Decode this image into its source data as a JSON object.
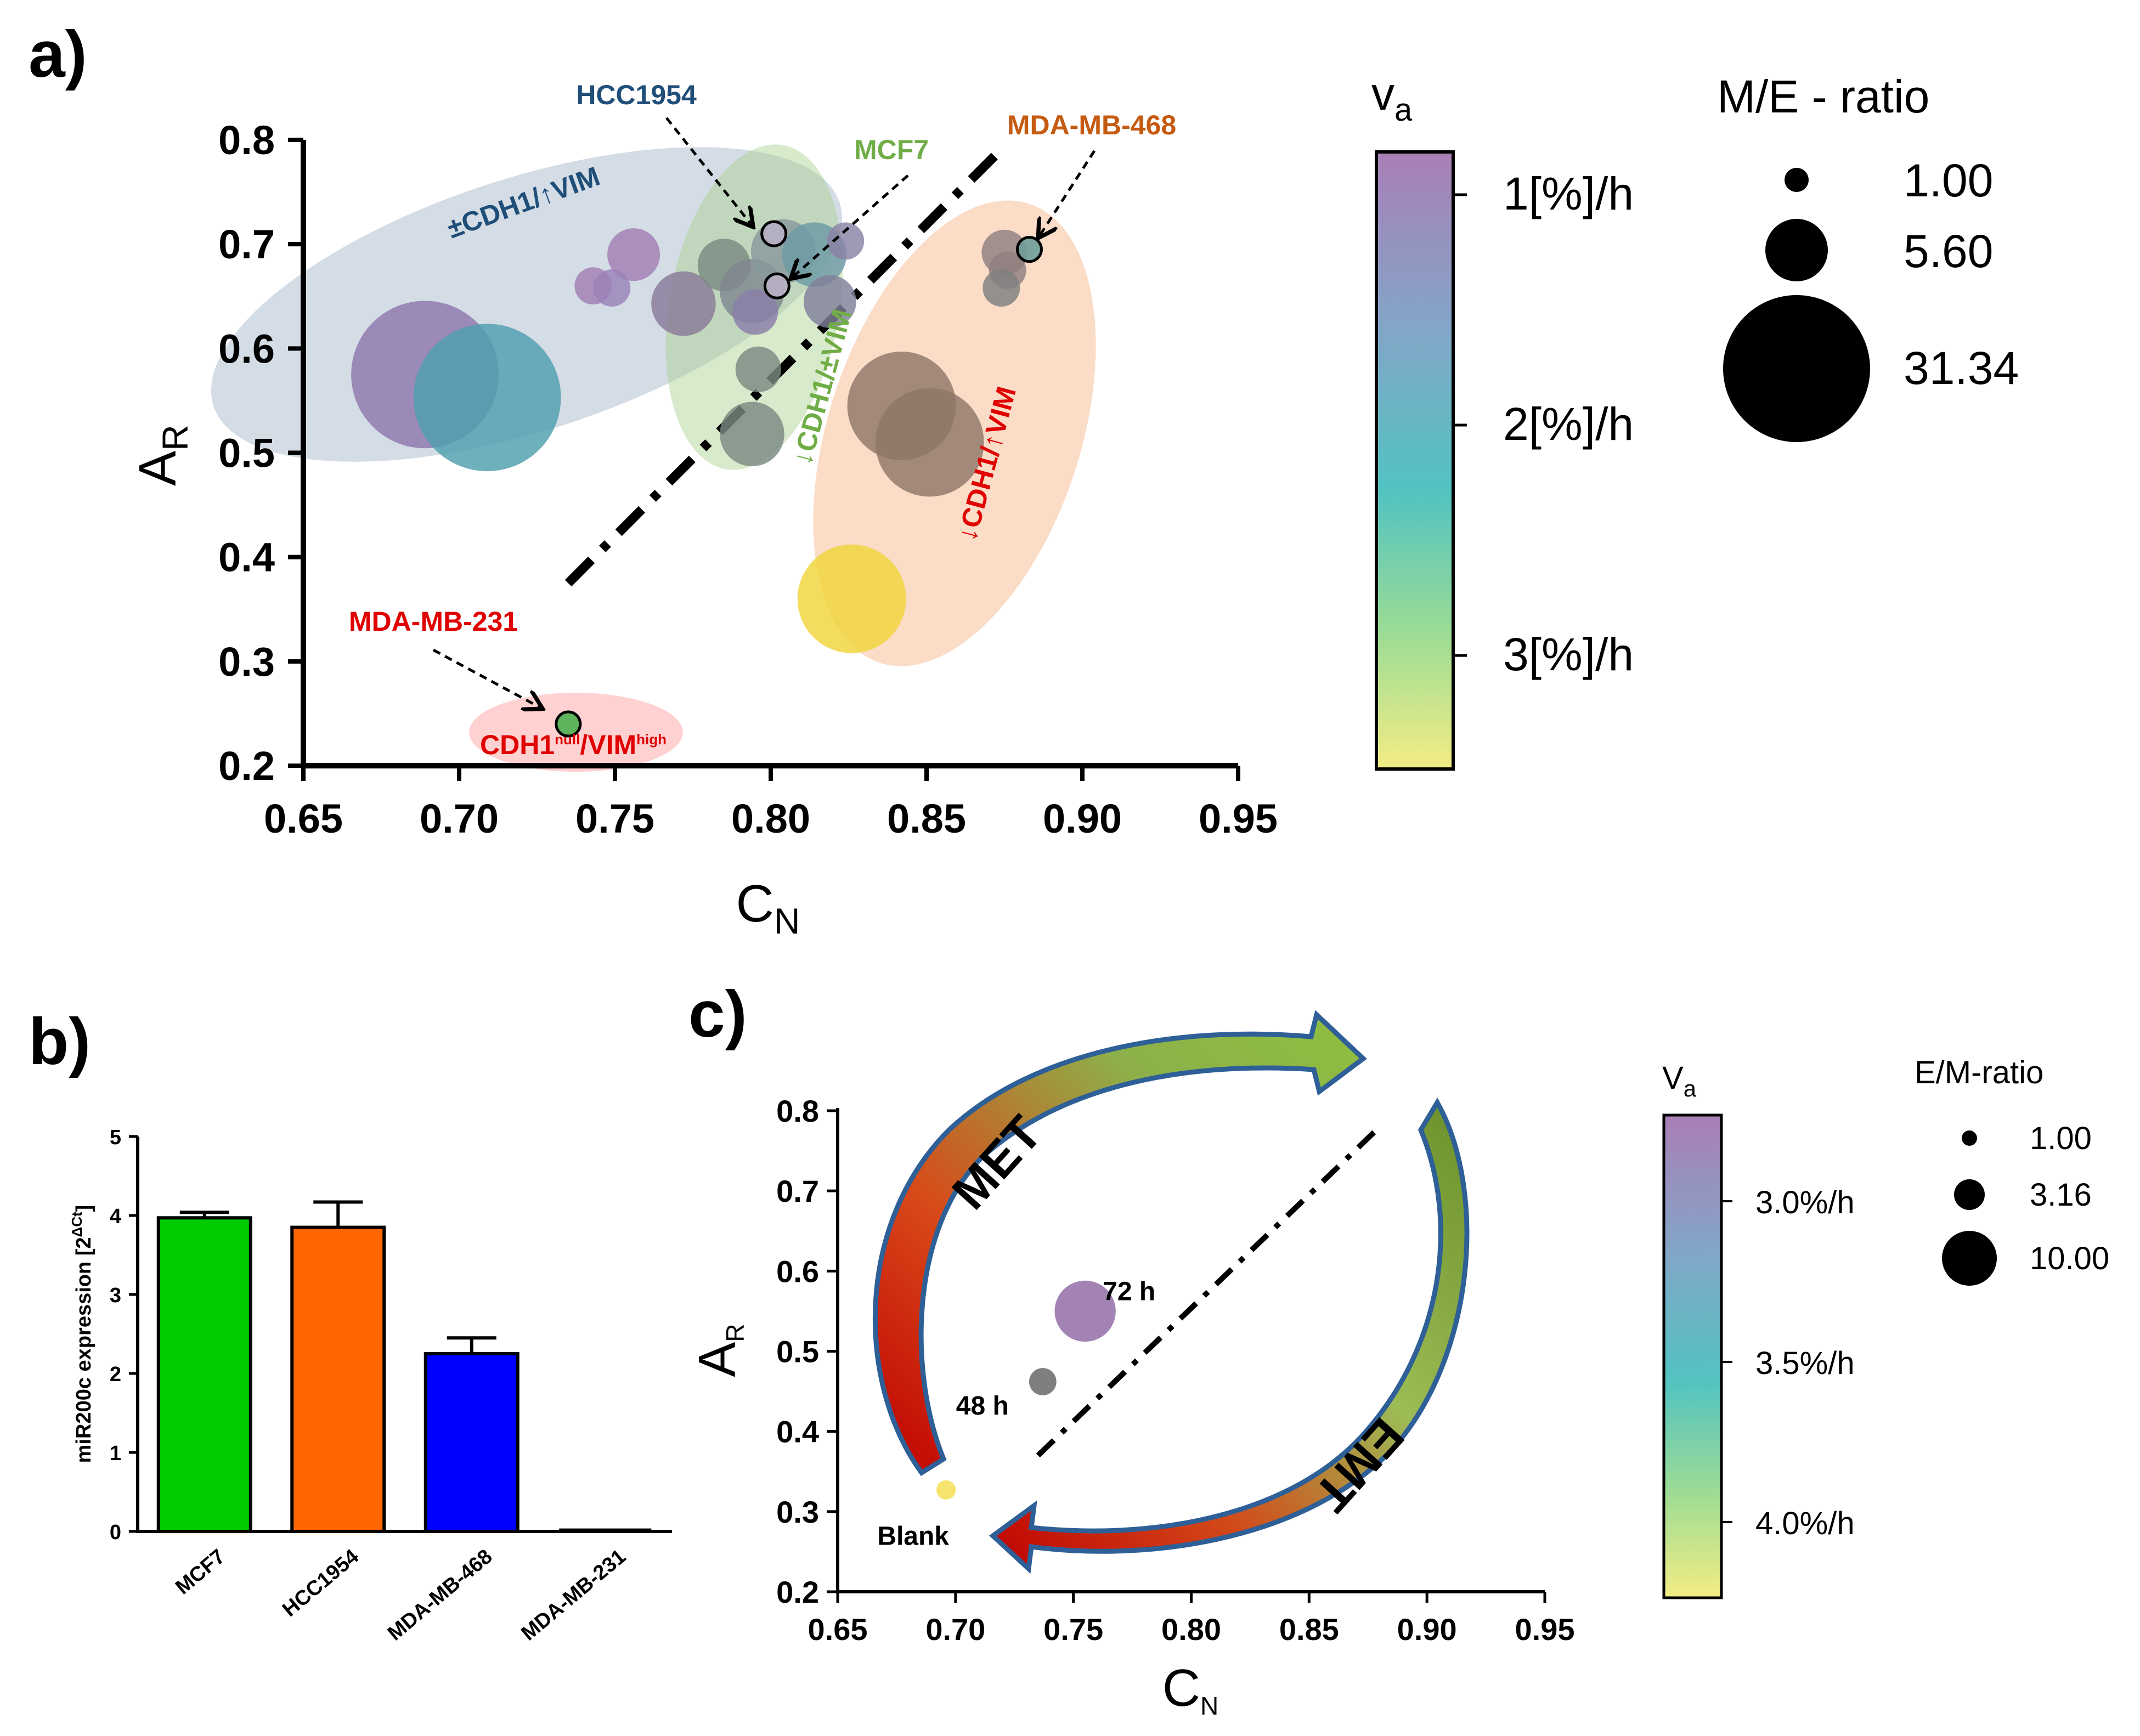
{
  "panel_labels": {
    "a": "a)",
    "b": "b)",
    "c": "c)"
  },
  "chart_data": [
    {
      "panel": "a",
      "type": "scatter",
      "xlabel": "C",
      "xlabel_sub": "N",
      "ylabel": "A",
      "ylabel_sub": "R",
      "xlim": [
        0.65,
        0.95
      ],
      "ylim": [
        0.2,
        0.8
      ],
      "xticks": [
        "0.65",
        "0.70",
        "0.75",
        "0.80",
        "0.85",
        "0.90",
        "0.95"
      ],
      "yticks": [
        "0.2",
        "0.3",
        "0.4",
        "0.5",
        "0.6",
        "0.7",
        "0.8"
      ],
      "colorbar": {
        "title": "v",
        "title_sub": "a",
        "ticks": [
          "1[%]/h",
          "2[%]/h",
          "3[%]/h"
        ],
        "colors": [
          "#a97fb6",
          "#83a5c8",
          "#52c3c1",
          "#9cdc95",
          "#f3ec84"
        ]
      },
      "size_legend": {
        "title": "M/E - ratio",
        "entries": [
          "1.00",
          "5.60",
          "31.34"
        ]
      },
      "regions": [
        {
          "label": "±CDH1/↑VIM",
          "color": "#1f4e79"
        },
        {
          "label": "↓CDH1/±VIM",
          "color": "#70ad47"
        },
        {
          "label": "↓CDH1/↑VIM",
          "color": "#e00000"
        },
        {
          "label": "CDH1",
          "sup1": "null",
          "mid": "/VIM",
          "sup2": "high",
          "color": "#e00000"
        }
      ],
      "cell_lines": [
        {
          "name": "HCC1954",
          "color": "#1f4e79",
          "x": 0.801,
          "y": 0.71
        },
        {
          "name": "MCF7",
          "color": "#70ad47",
          "x": 0.802,
          "y": 0.66
        },
        {
          "name": "MDA-MB-468",
          "color": "#c55a11",
          "x": 0.883,
          "y": 0.695
        },
        {
          "name": "MDA-MB-231",
          "color": "#e00000",
          "x": 0.735,
          "y": 0.24
        }
      ],
      "points": [
        {
          "x": 0.689,
          "y": 0.575,
          "ratio": 31.34,
          "color": "#8f78ad"
        },
        {
          "x": 0.709,
          "y": 0.553,
          "ratio": 31.34,
          "color": "#4f9fae"
        },
        {
          "x": 0.756,
          "y": 0.69,
          "ratio": 4.0,
          "color": "#a27fb5"
        },
        {
          "x": 0.743,
          "y": 0.66,
          "ratio": 2.0,
          "color": "#a27fb5"
        },
        {
          "x": 0.749,
          "y": 0.658,
          "ratio": 2.0,
          "color": "#9a82b8"
        },
        {
          "x": 0.772,
          "y": 0.643,
          "ratio": 6.0,
          "color": "#8a7a99"
        },
        {
          "x": 0.785,
          "y": 0.68,
          "ratio": 4.0,
          "color": "#7a8a82"
        },
        {
          "x": 0.794,
          "y": 0.655,
          "ratio": 6.0,
          "color": "#7f8790"
        },
        {
          "x": 0.804,
          "y": 0.693,
          "ratio": 6.0,
          "color": "#889a9d"
        },
        {
          "x": 0.814,
          "y": 0.69,
          "ratio": 6.0,
          "color": "#6c9aa6"
        },
        {
          "x": 0.824,
          "y": 0.703,
          "ratio": 2.0,
          "color": "#8b83a6"
        },
        {
          "x": 0.795,
          "y": 0.635,
          "ratio": 3.0,
          "color": "#8a7fa8"
        },
        {
          "x": 0.819,
          "y": 0.645,
          "ratio": 4.0,
          "color": "#80809a"
        },
        {
          "x": 0.796,
          "y": 0.58,
          "ratio": 3.0,
          "color": "#7a8a82"
        },
        {
          "x": 0.794,
          "y": 0.518,
          "ratio": 6.0,
          "color": "#7a8a82"
        },
        {
          "x": 0.842,
          "y": 0.545,
          "ratio": 17.0,
          "color": "#8f7668"
        },
        {
          "x": 0.851,
          "y": 0.51,
          "ratio": 17.0,
          "color": "#8f7668"
        },
        {
          "x": 0.875,
          "y": 0.692,
          "ratio": 3.0,
          "color": "#8f7f80"
        },
        {
          "x": 0.876,
          "y": 0.675,
          "ratio": 2.0,
          "color": "#8f7f80"
        },
        {
          "x": 0.874,
          "y": 0.658,
          "ratio": 2.0,
          "color": "#7f7f7f"
        },
        {
          "x": 0.826,
          "y": 0.36,
          "ratio": 17.0,
          "color": "#f2d43a"
        }
      ],
      "divider": {
        "x": [
          0.735,
          0.872
        ],
        "y": [
          0.375,
          0.785
        ]
      }
    },
    {
      "panel": "b",
      "type": "bar",
      "categories": [
        "MCF7",
        "HCC1954",
        "MDA-MB-468",
        "MDA-MB-231"
      ],
      "values": [
        3.97,
        3.85,
        2.25,
        0.02
      ],
      "errors": [
        0.07,
        0.32,
        0.2,
        0.0
      ],
      "colors": [
        "#00cc00",
        "#ff6600",
        "#0000ff",
        "#000000"
      ],
      "ylabel": "miR200c expression [2",
      "ylabel_sup": "ΔCt",
      "ylabel_end": "]",
      "ylim": [
        0,
        5
      ],
      "yticks": [
        "0",
        "1",
        "2",
        "3",
        "4",
        "5"
      ]
    },
    {
      "panel": "c",
      "type": "scatter",
      "xlabel": "C",
      "xlabel_sub": "N",
      "ylabel": "A",
      "ylabel_sub": "R",
      "xlim": [
        0.65,
        0.95
      ],
      "ylim": [
        0.2,
        0.8
      ],
      "xticks": [
        "0.65",
        "0.70",
        "0.75",
        "0.80",
        "0.85",
        "0.90",
        "0.95"
      ],
      "yticks": [
        "0.2",
        "0.3",
        "0.4",
        "0.5",
        "0.6",
        "0.7",
        "0.8"
      ],
      "colorbar": {
        "title": "V",
        "title_sub": "a",
        "ticks": [
          "3.0%/h",
          "3.5%/h",
          "4.0%/h"
        ],
        "colors": [
          "#a97fb6",
          "#83a5c8",
          "#52c3c1",
          "#9cdc95",
          "#f3ec84"
        ]
      },
      "size_legend": {
        "title": "E/M-ratio",
        "entries": [
          "1.00",
          "3.16",
          "10.00"
        ]
      },
      "arrows": {
        "met": "MET",
        "emt": "EMT"
      },
      "points": [
        {
          "label": "72 h",
          "x": 0.755,
          "y": 0.55,
          "ratio": 10.0,
          "color": "#a283b4"
        },
        {
          "label": "48 h",
          "x": 0.737,
          "y": 0.462,
          "ratio": 2.0,
          "color": "#7f7f7f"
        },
        {
          "label": "Blank",
          "x": 0.696,
          "y": 0.327,
          "ratio": 1.0,
          "color": "#f6e46e"
        }
      ],
      "divider": {
        "x": [
          0.735,
          0.88
        ],
        "y": [
          0.37,
          0.78
        ]
      }
    }
  ]
}
